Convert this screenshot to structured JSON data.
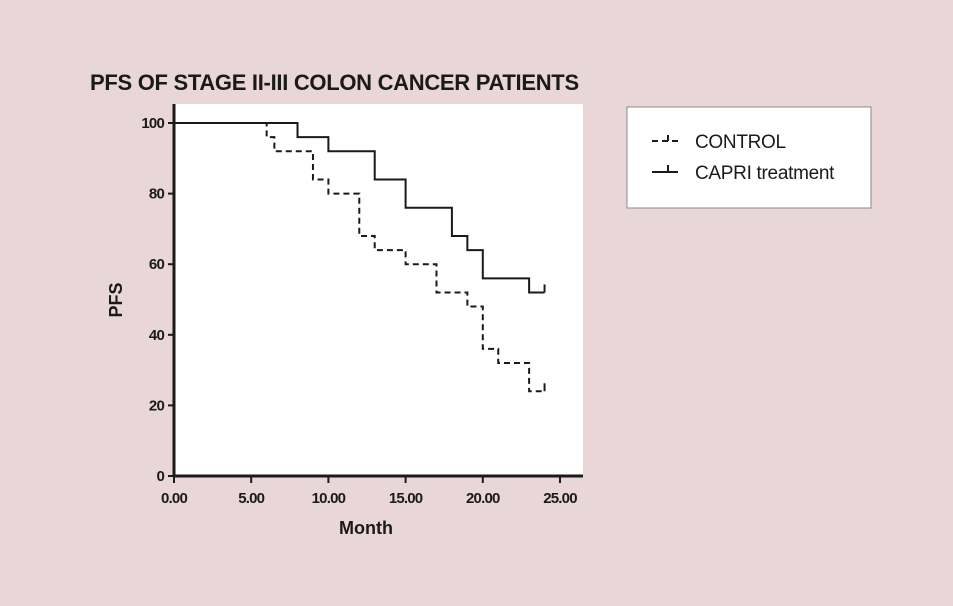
{
  "chart_data": {
    "type": "line",
    "style": "step",
    "title": "PFS OF STAGE II-III COLON CANCER PATIENTS",
    "xlabel": "Month",
    "ylabel": "PFS",
    "xlim": [
      0,
      26
    ],
    "ylim": [
      0,
      105
    ],
    "x_ticks": [
      0,
      5,
      10,
      15,
      20,
      25
    ],
    "x_tick_labels": [
      "0.00",
      "5.00",
      "10.00",
      "15.00",
      "20.00",
      "25.00"
    ],
    "y_ticks": [
      0,
      20,
      40,
      60,
      80,
      100
    ],
    "y_tick_labels": [
      "0",
      "20",
      "40",
      "60",
      "80",
      "100"
    ],
    "grid": false,
    "legend_position": "top-right",
    "series": [
      {
        "name": "CONTROL",
        "line": "dashed",
        "color": "#1a1a1a",
        "x": [
          0,
          6,
          6.5,
          7,
          9,
          10,
          12,
          13,
          15,
          17,
          19,
          20,
          21,
          23,
          24
        ],
        "y": [
          100,
          96,
          92,
          92,
          84,
          80,
          68,
          64,
          60,
          52,
          48,
          36,
          32,
          24,
          24
        ]
      },
      {
        "name": "CAPRI treatment",
        "line": "solid",
        "color": "#1a1a1a",
        "x": [
          0,
          8,
          10,
          13,
          15,
          18,
          19,
          20,
          23,
          24
        ],
        "y": [
          100,
          96,
          92,
          84,
          76,
          68,
          64,
          56,
          52,
          52
        ]
      }
    ]
  }
}
